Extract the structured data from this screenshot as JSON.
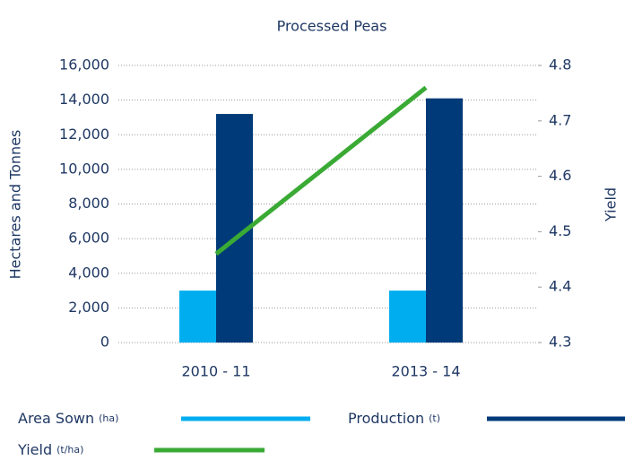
{
  "chart_data": {
    "type": "bar_line",
    "title": "Processed Peas",
    "y_label": "Hectares and Tonnes",
    "y2_label": "Yield",
    "categories": [
      "2010 - 11",
      "2013 - 14"
    ],
    "series": [
      {
        "name": "Area Sown",
        "unit": "(ha)",
        "type": "bar",
        "color": "#00aeef",
        "values": [
          3000,
          3000
        ]
      },
      {
        "name": "Production",
        "unit": "(t)",
        "type": "bar",
        "color": "#003a78",
        "values": [
          13200,
          14100
        ]
      },
      {
        "name": "Yield",
        "unit": "(t/ha)",
        "type": "line",
        "axis": "y2",
        "color": "#3aaa35",
        "values": [
          4.46,
          4.76
        ]
      }
    ],
    "ylim": [
      0,
      16000
    ],
    "yticks": [
      0,
      {
        "value": 2000,
        "label": "2,000"
      },
      {
        "value": 4000,
        "label": "4,000"
      },
      {
        "value": 6000,
        "label": "6,000"
      },
      {
        "value": 8000,
        "label": "8,000"
      },
      {
        "value": 10000,
        "label": "10,000"
      },
      {
        "value": 12000,
        "label": "12,000"
      },
      {
        "value": 14000,
        "label": "14,000"
      },
      {
        "value": 16000,
        "label": "16,000"
      }
    ],
    "y2lim": [
      4.3,
      4.8
    ],
    "y2ticks": [
      4.3,
      4.4,
      4.5,
      4.6,
      4.7,
      4.8
    ],
    "grid": true
  }
}
